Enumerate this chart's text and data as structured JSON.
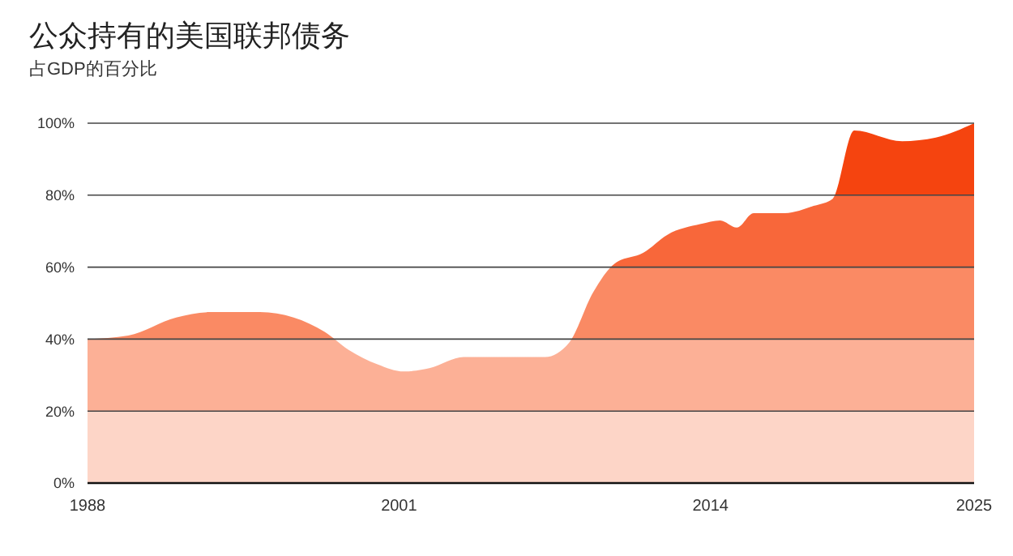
{
  "chart_data": {
    "type": "area",
    "title": "公众持有的美国联邦债务",
    "subtitle": "占GDP的百分比",
    "x": [
      1988,
      1989.7,
      1991.7,
      1993.1,
      1995.2,
      1996.6,
      1997.9,
      1998.9,
      2000.1,
      2001.2,
      2002.3,
      2003.7,
      2005.4,
      2007.1,
      2008.1,
      2009.1,
      2010,
      2011.2,
      2012.2,
      2013.6,
      2014.4,
      2015.1,
      2015.8,
      2017.1,
      2018.3,
      2019.1,
      2020,
      2022,
      2023.4,
      2025
    ],
    "series": [
      {
        "color": "#fa8a64",
        "values": [
          40,
          41,
          46,
          47.5,
          47.5,
          46,
          42,
          37,
          33,
          31,
          32,
          35,
          35,
          35,
          39,
          53,
          61,
          64,
          69,
          72,
          73,
          71,
          75,
          75,
          77,
          79,
          98,
          95,
          96,
          100
        ]
      }
    ],
    "xlim": [
      1988,
      2025
    ],
    "xticks": [
      1988,
      2001,
      2014,
      2025
    ],
    "ylim": [
      0,
      100
    ],
    "yticks": [
      {
        "value": 0,
        "label": "0%"
      },
      {
        "value": 20,
        "label": "20%"
      },
      {
        "value": 40,
        "label": "40%"
      },
      {
        "value": 60,
        "label": "60%"
      },
      {
        "value": 80,
        "label": "80%"
      },
      {
        "value": 100,
        "label": "100%"
      }
    ],
    "grid": "y"
  }
}
